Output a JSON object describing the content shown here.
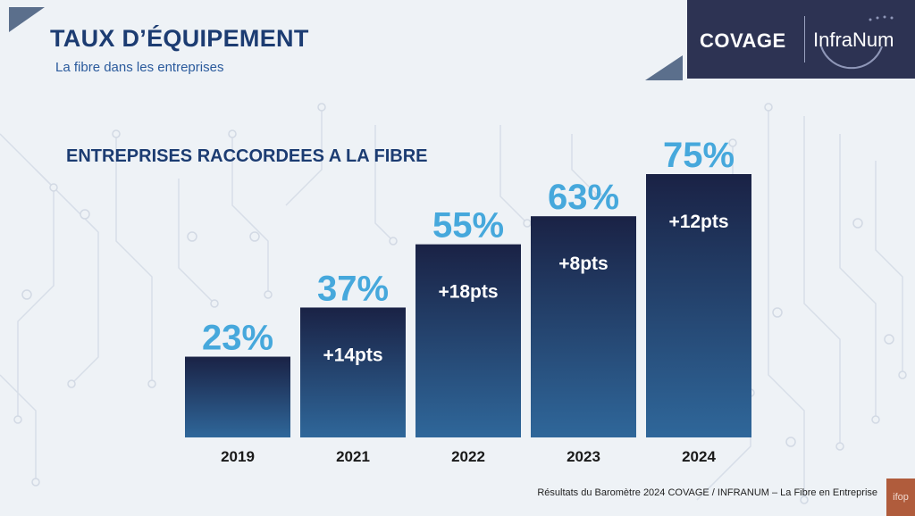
{
  "header": {
    "title": "TAUX D’ÉQUIPEMENT",
    "subtitle": "La fibre dans les entreprises"
  },
  "logo": {
    "brand_left": "COVAGE",
    "brand_right": "InfraNum"
  },
  "chart_data": {
    "type": "bar",
    "title": "ENTREPRISES RACCORDEES A LA FIBRE",
    "categories": [
      "2019",
      "2021",
      "2022",
      "2023",
      "2024"
    ],
    "values": [
      23,
      37,
      55,
      63,
      75
    ],
    "value_labels": [
      "23%",
      "37%",
      "55%",
      "63%",
      "75%"
    ],
    "deltas": [
      "",
      "+14pts",
      "+18pts",
      "+8pts",
      "+12pts"
    ],
    "unit": "%",
    "ylim": [
      0,
      75
    ],
    "grid": false,
    "legend": "none",
    "colors": {
      "bar_top": "#1a2245",
      "bar_bottom": "#2f679a",
      "value_label": "#46a8dc",
      "heading": "#1c3c72"
    }
  },
  "footer": {
    "source": "Résultats du Baromètre 2024 COVAGE / INFRANUM – La Fibre en Entreprise",
    "ifop_logo": "ifop"
  }
}
